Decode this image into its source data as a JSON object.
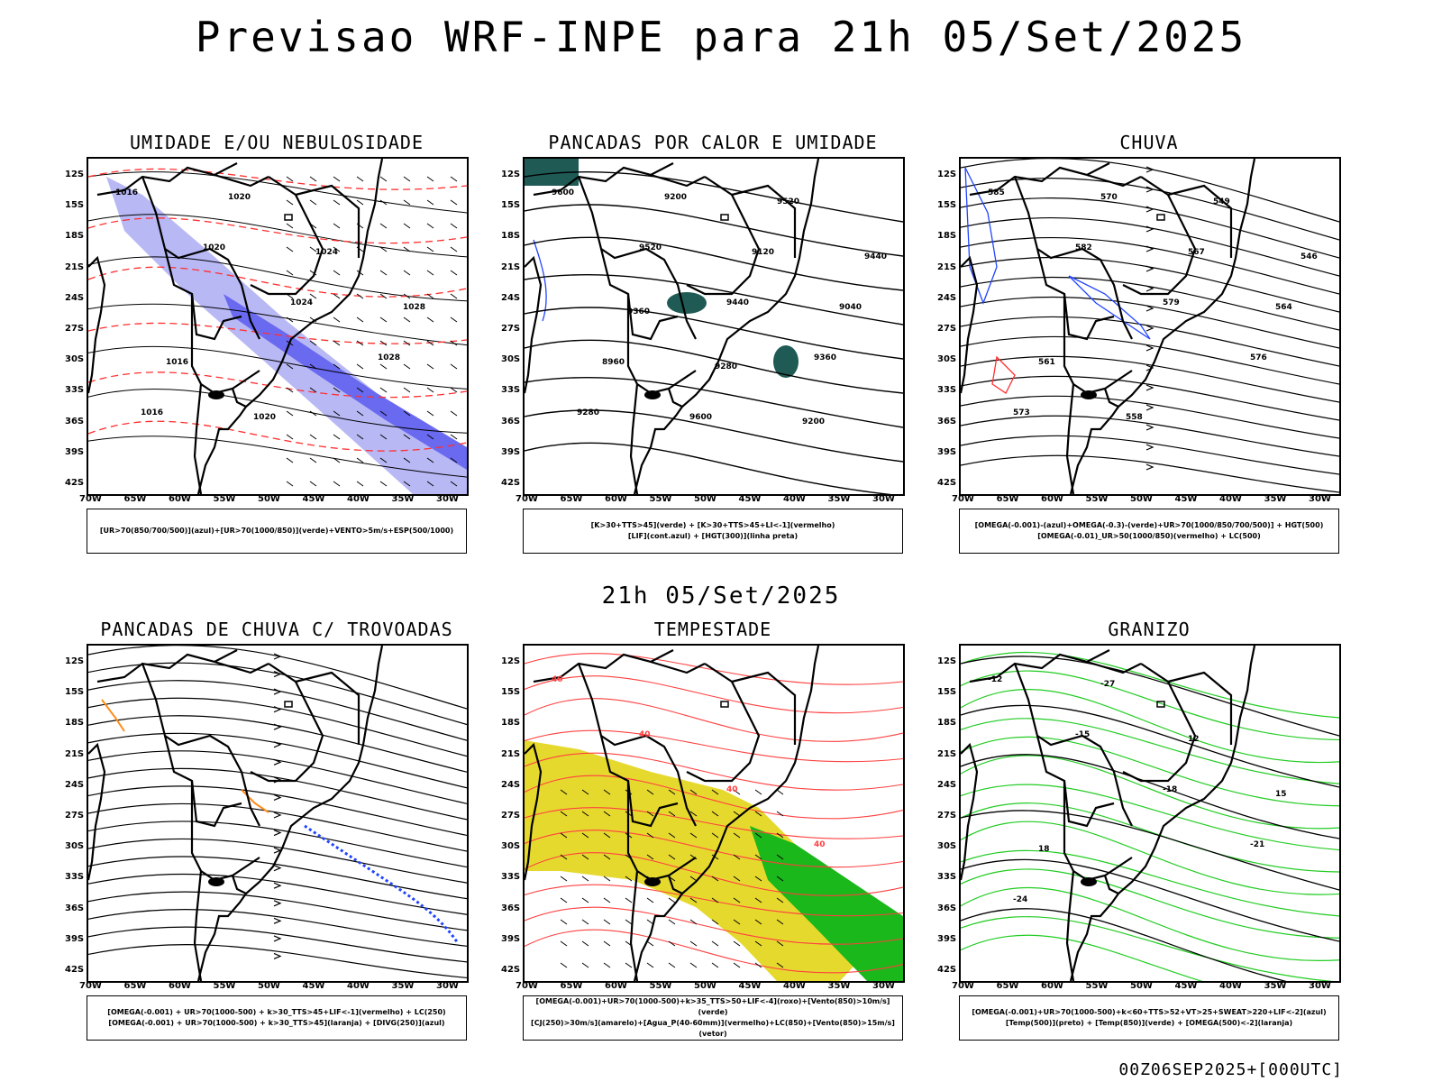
{
  "header": {
    "title": "Previsao WRF-INPE  para 21h 05/Set/2025"
  },
  "mid": {
    "title": "21h 05/Set/2025"
  },
  "footer": {
    "run": "00Z06SEP2025+[000UTC]"
  },
  "axes": {
    "y_ticks": [
      "12S",
      "15S",
      "18S",
      "21S",
      "24S",
      "27S",
      "30S",
      "33S",
      "36S",
      "39S",
      "42S"
    ],
    "x_ticks": [
      "70W",
      "65W",
      "60W",
      "55W",
      "50W",
      "45W",
      "40W",
      "35W",
      "30W"
    ]
  },
  "panels": [
    {
      "title": "UMIDADE E/OU NEBULOSIDADE",
      "legend": [
        "[UR>70(850/700/500)](azul)+[UR>70(1000/850)](verde)+VENTO>5m/s+ESP(500/1000)"
      ],
      "labels": [
        "1016",
        "1020",
        "1024",
        "1028",
        "1016",
        "1020",
        "1024",
        "1028",
        "1016",
        "1020"
      ],
      "colors": {
        "blue": "#6a6af0",
        "lightblue": "#b8b8f5",
        "green": "#22cc22",
        "red": "#ff3030"
      }
    },
    {
      "title": "PANCADAS POR CALOR E UMIDADE",
      "legend": [
        "[K>30+TTS>45](verde) + [K>30+TTS>45+LI<-1](vermelho)",
        "[LIF](cont.azul) + [HGT(300)](linha preta)"
      ],
      "labels": [
        "9600",
        "9520",
        "9440",
        "9360",
        "9280",
        "9200",
        "9120",
        "9040",
        "8960",
        "9600",
        "9520",
        "9440",
        "9360",
        "9280",
        "9200"
      ],
      "colors": {
        "teal": "#1f5a55",
        "red": "#ff2020",
        "blue": "#2244ff"
      }
    },
    {
      "title": "CHUVA",
      "legend": [
        "[OMEGA(-0.001)-(azul)+OMEGA(-0.3)-(verde)+UR>70(1000/850/700/500)] + HGT(500)",
        "[OMEGA(-0.01)_UR>50(1000/850)(vermelho) + LC(500)"
      ],
      "labels": [
        "585",
        "582",
        "579",
        "576",
        "573",
        "570",
        "567",
        "564",
        "561",
        "558",
        "549",
        "546"
      ],
      "colors": {
        "blue": "#2244ff",
        "red": "#ff3030"
      }
    },
    {
      "title": "PANCADAS DE CHUVA C/ TROVOADAS",
      "legend": [
        "[OMEGA(-0.001) + UR>70(1000-500) + k>30_TTS>45+LIF<-1](vermelho) + LC(250)",
        "[OMEGA(-0.001) + UR>70(1000-500) + k>30_TTS>45](laranja) + [DIVG(250)](azul)"
      ],
      "labels": [],
      "colors": {
        "blue": "#2244ff",
        "orange": "#ff8c1a"
      }
    },
    {
      "title": "TEMPESTADE",
      "legend": [
        "[OMEGA(-0.001)+UR>70(1000-500)+k>35_TTS>50+LIF<-4](roxo)+[Vento(850)>10m/s](verde)",
        "[CJ(250)>30m/s](amarelo)+[Agua_P(40-60mm)](vermelho)+LC(850)+[Vento(850)>15m/s](vetor)"
      ],
      "labels": [
        "40",
        "40",
        "40",
        "40"
      ],
      "colors": {
        "yellow": "#e6d92e",
        "green": "#1ab81a",
        "red": "#ff4040"
      }
    },
    {
      "title": "GRANIZO",
      "legend": [
        "[OMEGA(-0.001)+UR>70(1000-500)+k<60+TTS>52+VT>25+SWEAT>220+LIF<-2](azul)",
        "[Temp(500)](preto) + [Temp(850)](verde) + [OMEGA(500)<-2](laranja)"
      ],
      "labels": [
        "-12",
        "-15",
        "-18",
        "-21",
        "-24",
        "-27",
        "12",
        "15",
        "18"
      ],
      "colors": {
        "green": "#22cc22"
      }
    }
  ]
}
